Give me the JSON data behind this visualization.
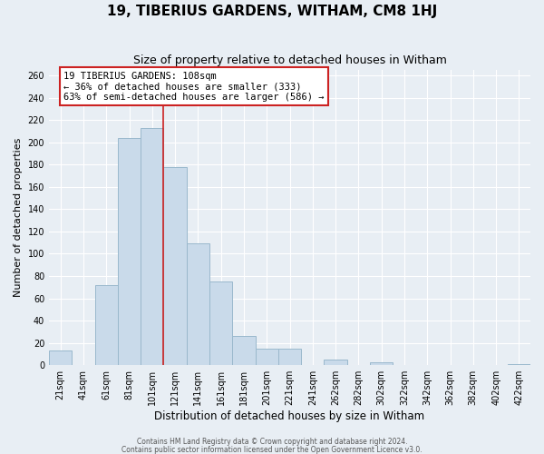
{
  "title": "19, TIBERIUS GARDENS, WITHAM, CM8 1HJ",
  "subtitle": "Size of property relative to detached houses in Witham",
  "xlabel": "Distribution of detached houses by size in Witham",
  "ylabel": "Number of detached properties",
  "categories": [
    "21sqm",
    "41sqm",
    "61sqm",
    "81sqm",
    "101sqm",
    "121sqm",
    "141sqm",
    "161sqm",
    "181sqm",
    "201sqm",
    "221sqm",
    "241sqm",
    "262sqm",
    "282sqm",
    "302sqm",
    "322sqm",
    "342sqm",
    "362sqm",
    "382sqm",
    "402sqm",
    "422sqm"
  ],
  "values": [
    13,
    0,
    72,
    204,
    213,
    178,
    109,
    75,
    26,
    15,
    15,
    0,
    5,
    0,
    3,
    0,
    0,
    0,
    0,
    0,
    1
  ],
  "bar_color": "#c9daea",
  "bar_edge_color": "#9ab8cc",
  "vline_x_index": 4,
  "vline_color": "#cc2222",
  "annotation_title": "19 TIBERIUS GARDENS: 108sqm",
  "annotation_line1": "← 36% of detached houses are smaller (333)",
  "annotation_line2": "63% of semi-detached houses are larger (586) →",
  "annotation_box_facecolor": "#ffffff",
  "annotation_box_edgecolor": "#cc2222",
  "ylim": [
    0,
    265
  ],
  "yticks": [
    0,
    20,
    40,
    60,
    80,
    100,
    120,
    140,
    160,
    180,
    200,
    220,
    240,
    260
  ],
  "footer1": "Contains HM Land Registry data © Crown copyright and database right 2024.",
  "footer2": "Contains public sector information licensed under the Open Government Licence v3.0.",
  "background_color": "#e8eef4",
  "plot_bg_color": "#e8eef4",
  "grid_color": "#ffffff",
  "title_fontsize": 11,
  "subtitle_fontsize": 9,
  "tick_fontsize": 7,
  "ylabel_fontsize": 8,
  "xlabel_fontsize": 8.5,
  "annotation_fontsize": 7.5,
  "footer_fontsize": 5.5
}
